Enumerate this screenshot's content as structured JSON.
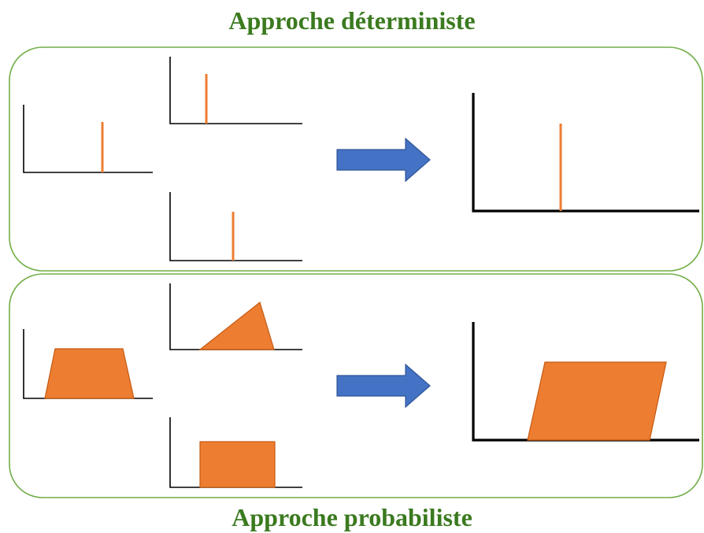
{
  "colors": {
    "title": "#3b7a1f",
    "frame": "#70ad47",
    "axis": "#000000",
    "shape": "#ed7d31",
    "shape_edge": "#c55a11",
    "arrow": "#4472c4",
    "arrow_edge": "#2f5597"
  },
  "titles": {
    "deterministic": "Approche déterministe",
    "probabilistic": "Approche probabiliste"
  },
  "icons": {
    "transition_arrow": "right-block-arrow-icon"
  }
}
